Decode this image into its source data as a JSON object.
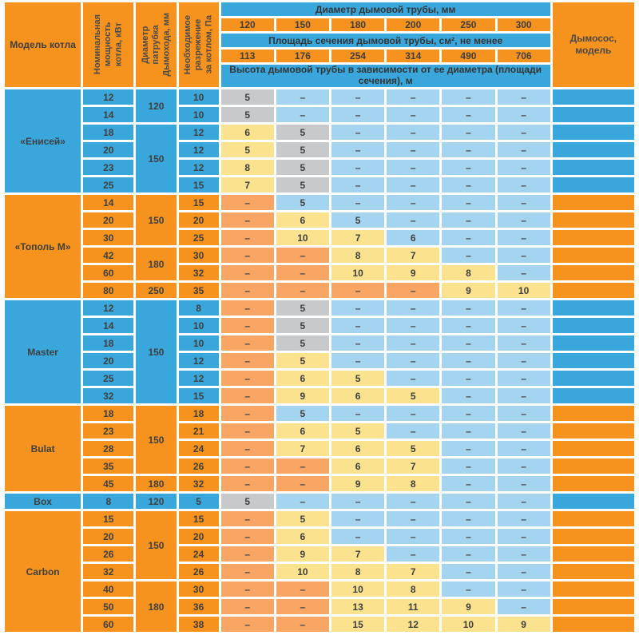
{
  "header": {
    "model": "Модель котла",
    "power": "Номинальная\nмощность\nкотла, кВт",
    "pipe": "Диаметр\nпатрубка\nДымохода, мм",
    "draft": "Необходимое\nразрежение\nза котлом, Па",
    "diameter_title": "Диаметр дымовой трубы, мм",
    "diameters": [
      "120",
      "150",
      "180",
      "200",
      "250",
      "300"
    ],
    "area_title": "Площадь сечения дымовой трубы, см², не менее",
    "areas": [
      "113",
      "176",
      "254",
      "314",
      "490",
      "706"
    ],
    "height_title": "Высота дымовой трубы в зависимости от ее диаметра (площади сечения), м",
    "fan": "Дымосос, модель"
  },
  "colors": {
    "section_orange": "#F6921E",
    "section_blue": "#3AA7DC",
    "cell_gray": "#C8C9CB",
    "cell_yellow": "#FBE28E",
    "cell_light_blue": "#A5D4F0",
    "cell_light_orange": "#F9A665",
    "grid": "#FFFFFF",
    "text": "#3F3F3F"
  },
  "dash": "–",
  "sections": [
    {
      "name": "«Енисей»",
      "tone": "blue",
      "pipes": [
        {
          "v": "120",
          "span": 2
        },
        {
          "v": "150",
          "span": 4
        }
      ],
      "rows": [
        {
          "power": "12",
          "draft": "10",
          "heights": [
            [
              "5",
              "gr"
            ],
            [
              "–",
              "bl"
            ],
            [
              "–",
              "bl"
            ],
            [
              "–",
              "bl"
            ],
            [
              "–",
              "bl"
            ],
            [
              "–",
              "bl"
            ]
          ]
        },
        {
          "power": "14",
          "draft": "10",
          "heights": [
            [
              "5",
              "gr"
            ],
            [
              "–",
              "bl"
            ],
            [
              "–",
              "bl"
            ],
            [
              "–",
              "bl"
            ],
            [
              "–",
              "bl"
            ],
            [
              "–",
              "bl"
            ]
          ]
        },
        {
          "power": "18",
          "draft": "12",
          "heights": [
            [
              "6",
              "ye"
            ],
            [
              "5",
              "gr"
            ],
            [
              "–",
              "bl"
            ],
            [
              "–",
              "bl"
            ],
            [
              "–",
              "bl"
            ],
            [
              "–",
              "bl"
            ]
          ]
        },
        {
          "power": "20",
          "draft": "12",
          "heights": [
            [
              "5",
              "ye"
            ],
            [
              "5",
              "gr"
            ],
            [
              "–",
              "bl"
            ],
            [
              "–",
              "bl"
            ],
            [
              "–",
              "bl"
            ],
            [
              "–",
              "bl"
            ]
          ]
        },
        {
          "power": "23",
          "draft": "12",
          "heights": [
            [
              "8",
              "ye"
            ],
            [
              "5",
              "gr"
            ],
            [
              "–",
              "bl"
            ],
            [
              "–",
              "bl"
            ],
            [
              "–",
              "bl"
            ],
            [
              "–",
              "bl"
            ]
          ]
        },
        {
          "power": "25",
          "draft": "15",
          "heights": [
            [
              "7",
              "ye"
            ],
            [
              "5",
              "gr"
            ],
            [
              "–",
              "bl"
            ],
            [
              "–",
              "bl"
            ],
            [
              "–",
              "bl"
            ],
            [
              "–",
              "bl"
            ]
          ]
        }
      ]
    },
    {
      "name": "«Тополь М»",
      "tone": "orange",
      "pipes": [
        {
          "v": "150",
          "span": 3
        },
        {
          "v": "180",
          "span": 2
        },
        {
          "v": "250",
          "span": 1
        }
      ],
      "rows": [
        {
          "power": "14",
          "draft": "15",
          "heights": [
            [
              "–",
              "or"
            ],
            [
              "5",
              "bl"
            ],
            [
              "–",
              "bl"
            ],
            [
              "–",
              "bl"
            ],
            [
              "–",
              "bl"
            ],
            [
              "–",
              "bl"
            ]
          ]
        },
        {
          "power": "20",
          "draft": "20",
          "heights": [
            [
              "–",
              "or"
            ],
            [
              "6",
              "ye"
            ],
            [
              "5",
              "bl"
            ],
            [
              "–",
              "bl"
            ],
            [
              "–",
              "bl"
            ],
            [
              "–",
              "bl"
            ]
          ]
        },
        {
          "power": "30",
          "draft": "25",
          "heights": [
            [
              "–",
              "or"
            ],
            [
              "10",
              "ye"
            ],
            [
              "7",
              "ye"
            ],
            [
              "6",
              "bl"
            ],
            [
              "–",
              "bl"
            ],
            [
              "–",
              "bl"
            ]
          ]
        },
        {
          "power": "42",
          "draft": "30",
          "heights": [
            [
              "–",
              "or"
            ],
            [
              "–",
              "or"
            ],
            [
              "8",
              "ye"
            ],
            [
              "7",
              "ye"
            ],
            [
              "–",
              "bl"
            ],
            [
              "–",
              "bl"
            ]
          ]
        },
        {
          "power": "60",
          "draft": "32",
          "heights": [
            [
              "–",
              "or"
            ],
            [
              "–",
              "or"
            ],
            [
              "10",
              "ye"
            ],
            [
              "9",
              "ye"
            ],
            [
              "8",
              "ye"
            ],
            [
              "–",
              "bl"
            ]
          ]
        },
        {
          "power": "80",
          "draft": "35",
          "heights": [
            [
              "–",
              "or"
            ],
            [
              "–",
              "or"
            ],
            [
              "–",
              "or"
            ],
            [
              "–",
              "or"
            ],
            [
              "9",
              "ye"
            ],
            [
              "10",
              "ye"
            ]
          ]
        }
      ]
    },
    {
      "name": "Master",
      "tone": "blue",
      "pipes": [
        {
          "v": "150",
          "span": 6
        }
      ],
      "rows": [
        {
          "power": "12",
          "draft": "8",
          "heights": [
            [
              "–",
              "or"
            ],
            [
              "5",
              "gr"
            ],
            [
              "–",
              "bl"
            ],
            [
              "–",
              "bl"
            ],
            [
              "–",
              "bl"
            ],
            [
              "–",
              "bl"
            ]
          ]
        },
        {
          "power": "14",
          "draft": "10",
          "heights": [
            [
              "–",
              "or"
            ],
            [
              "5",
              "gr"
            ],
            [
              "–",
              "bl"
            ],
            [
              "–",
              "bl"
            ],
            [
              "–",
              "bl"
            ],
            [
              "–",
              "bl"
            ]
          ]
        },
        {
          "power": "18",
          "draft": "10",
          "heights": [
            [
              "–",
              "or"
            ],
            [
              "5",
              "gr"
            ],
            [
              "–",
              "bl"
            ],
            [
              "–",
              "bl"
            ],
            [
              "–",
              "bl"
            ],
            [
              "–",
              "bl"
            ]
          ]
        },
        {
          "power": "20",
          "draft": "12",
          "heights": [
            [
              "–",
              "or"
            ],
            [
              "5",
              "ye"
            ],
            [
              "–",
              "bl"
            ],
            [
              "–",
              "bl"
            ],
            [
              "–",
              "bl"
            ],
            [
              "–",
              "bl"
            ]
          ]
        },
        {
          "power": "25",
          "draft": "12",
          "heights": [
            [
              "–",
              "or"
            ],
            [
              "6",
              "ye"
            ],
            [
              "5",
              "ye"
            ],
            [
              "–",
              "bl"
            ],
            [
              "–",
              "bl"
            ],
            [
              "–",
              "bl"
            ]
          ]
        },
        {
          "power": "32",
          "draft": "15",
          "heights": [
            [
              "–",
              "or"
            ],
            [
              "9",
              "ye"
            ],
            [
              "6",
              "ye"
            ],
            [
              "5",
              "ye"
            ],
            [
              "–",
              "bl"
            ],
            [
              "–",
              "bl"
            ]
          ]
        }
      ]
    },
    {
      "name": "Bulat",
      "tone": "orange",
      "pipes": [
        {
          "v": "150",
          "span": 4
        },
        {
          "v": "180",
          "span": 1
        }
      ],
      "rows": [
        {
          "power": "18",
          "draft": "18",
          "heights": [
            [
              "–",
              "or"
            ],
            [
              "5",
              "bl"
            ],
            [
              "–",
              "bl"
            ],
            [
              "–",
              "bl"
            ],
            [
              "–",
              "bl"
            ],
            [
              "–",
              "bl"
            ]
          ]
        },
        {
          "power": "23",
          "draft": "21",
          "heights": [
            [
              "–",
              "or"
            ],
            [
              "6",
              "ye"
            ],
            [
              "5",
              "ye"
            ],
            [
              "–",
              "bl"
            ],
            [
              "–",
              "bl"
            ],
            [
              "–",
              "bl"
            ]
          ]
        },
        {
          "power": "28",
          "draft": "24",
          "heights": [
            [
              "–",
              "or"
            ],
            [
              "7",
              "ye"
            ],
            [
              "6",
              "ye"
            ],
            [
              "5",
              "ye"
            ],
            [
              "–",
              "bl"
            ],
            [
              "–",
              "bl"
            ]
          ]
        },
        {
          "power": "35",
          "draft": "26",
          "heights": [
            [
              "–",
              "or"
            ],
            [
              "–",
              "or"
            ],
            [
              "6",
              "ye"
            ],
            [
              "7",
              "ye"
            ],
            [
              "–",
              "bl"
            ],
            [
              "–",
              "bl"
            ]
          ]
        },
        {
          "power": "45",
          "draft": "32",
          "heights": [
            [
              "–",
              "or"
            ],
            [
              "–",
              "or"
            ],
            [
              "9",
              "ye"
            ],
            [
              "8",
              "ye"
            ],
            [
              "–",
              "bl"
            ],
            [
              "–",
              "bl"
            ]
          ]
        }
      ]
    },
    {
      "name": "Box",
      "tone": "blue",
      "pipes": [
        {
          "v": "120",
          "span": 1
        }
      ],
      "rows": [
        {
          "power": "8",
          "draft": "5",
          "heights": [
            [
              "5",
              "gr"
            ],
            [
              "–",
              "bl"
            ],
            [
              "–",
              "bl"
            ],
            [
              "–",
              "bl"
            ],
            [
              "–",
              "bl"
            ],
            [
              "–",
              "bl"
            ]
          ]
        }
      ]
    },
    {
      "name": "Carbon",
      "tone": "orange",
      "pipes": [
        {
          "v": "150",
          "span": 4
        },
        {
          "v": "180",
          "span": 3
        }
      ],
      "rows": [
        {
          "power": "15",
          "draft": "15",
          "heights": [
            [
              "–",
              "or"
            ],
            [
              "5",
              "ye"
            ],
            [
              "–",
              "bl"
            ],
            [
              "–",
              "bl"
            ],
            [
              "–",
              "bl"
            ],
            [
              "–",
              "bl"
            ]
          ]
        },
        {
          "power": "20",
          "draft": "20",
          "heights": [
            [
              "–",
              "or"
            ],
            [
              "6",
              "ye"
            ],
            [
              "–",
              "bl"
            ],
            [
              "–",
              "bl"
            ],
            [
              "–",
              "bl"
            ],
            [
              "–",
              "bl"
            ]
          ]
        },
        {
          "power": "26",
          "draft": "24",
          "heights": [
            [
              "–",
              "or"
            ],
            [
              "9",
              "ye"
            ],
            [
              "7",
              "ye"
            ],
            [
              "–",
              "bl"
            ],
            [
              "–",
              "bl"
            ],
            [
              "–",
              "bl"
            ]
          ]
        },
        {
          "power": "32",
          "draft": "26",
          "heights": [
            [
              "–",
              "or"
            ],
            [
              "10",
              "ye"
            ],
            [
              "8",
              "ye"
            ],
            [
              "7",
              "ye"
            ],
            [
              "–",
              "bl"
            ],
            [
              "–",
              "bl"
            ]
          ]
        },
        {
          "power": "40",
          "draft": "30",
          "heights": [
            [
              "–",
              "or"
            ],
            [
              "–",
              "or"
            ],
            [
              "10",
              "ye"
            ],
            [
              "8",
              "ye"
            ],
            [
              "–",
              "bl"
            ],
            [
              "–",
              "bl"
            ]
          ]
        },
        {
          "power": "50",
          "draft": "36",
          "heights": [
            [
              "–",
              "or"
            ],
            [
              "–",
              "or"
            ],
            [
              "13",
              "ye"
            ],
            [
              "11",
              "ye"
            ],
            [
              "9",
              "ye"
            ],
            [
              "–",
              "bl"
            ]
          ]
        },
        {
          "power": "60",
          "draft": "38",
          "heights": [
            [
              "–",
              "or"
            ],
            [
              "–",
              "or"
            ],
            [
              "15",
              "ye"
            ],
            [
              "12",
              "ye"
            ],
            [
              "10",
              "ye"
            ],
            [
              "9",
              "ye"
            ]
          ]
        }
      ]
    }
  ]
}
